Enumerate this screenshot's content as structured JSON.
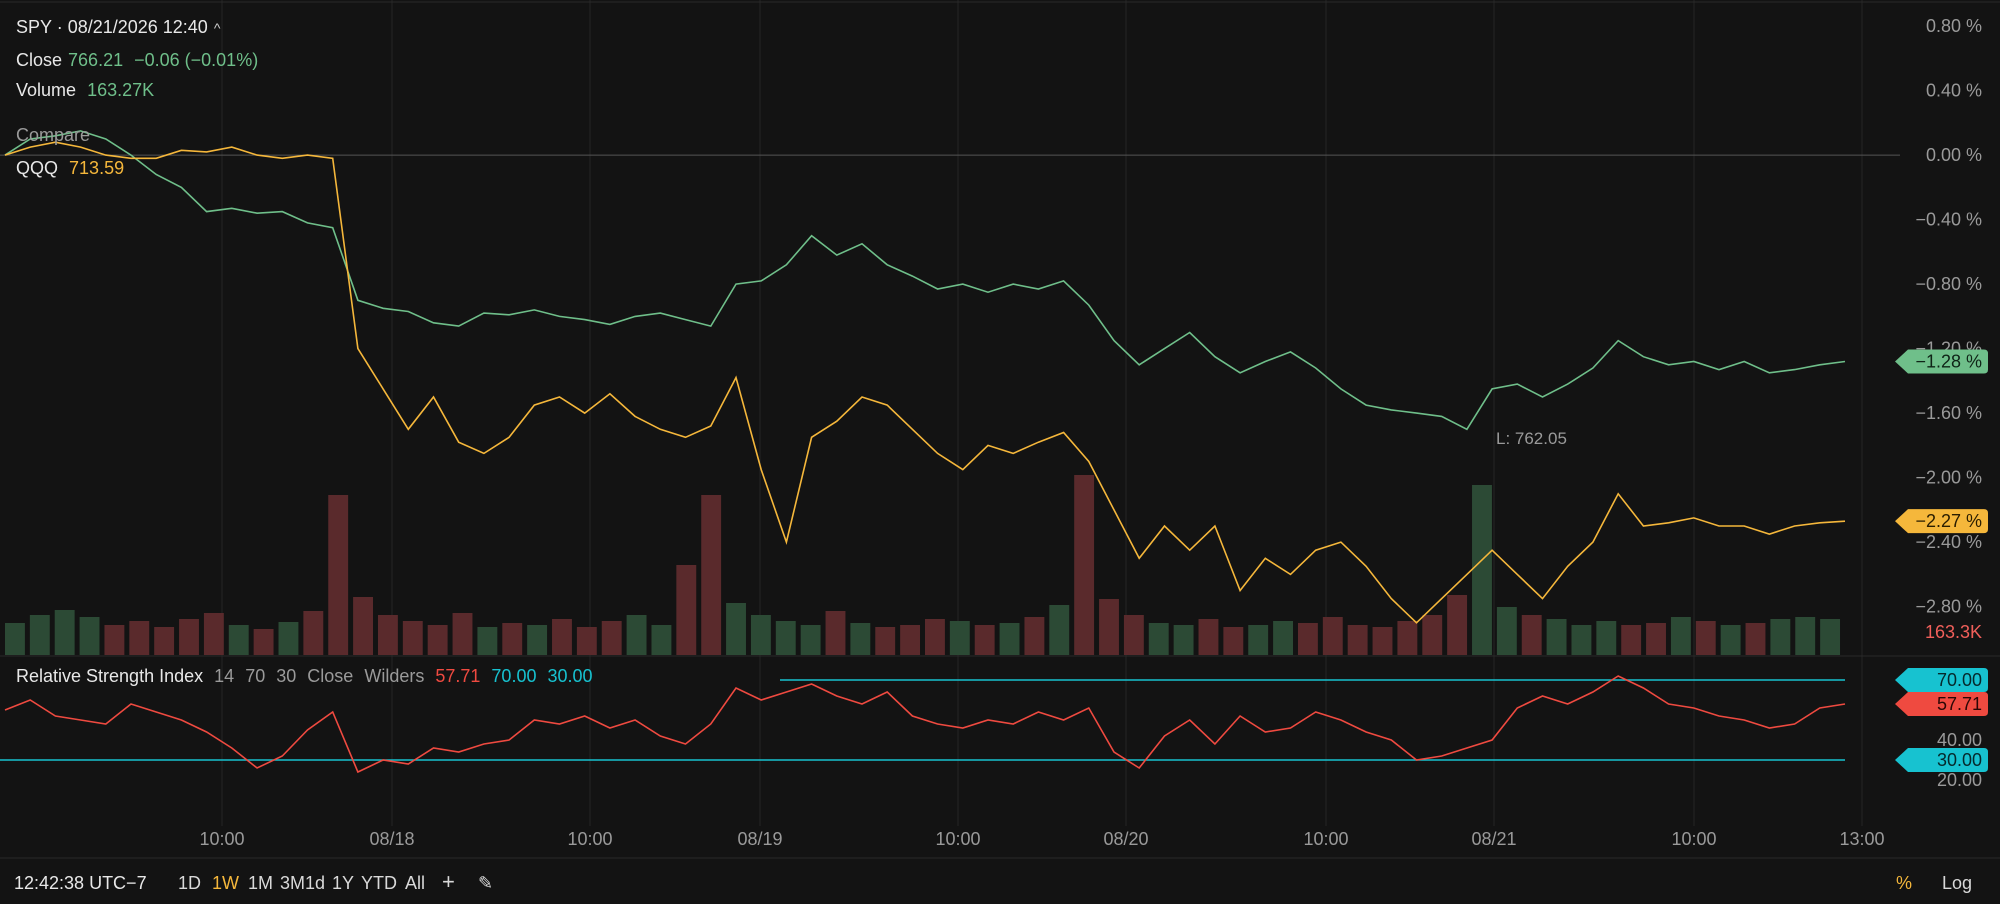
{
  "header": {
    "title": "SPY · 08/21/2026 12:40",
    "close_label": "Close",
    "close_value": "766.21",
    "close_change": "−0.06 (−0.01%)",
    "volume_label": "Volume",
    "volume_value": "163.27K",
    "compare_label": "Compare",
    "compare_symbol": "QQQ",
    "compare_value": "713.59"
  },
  "rsi_legend": {
    "name": "Relative Strength Index",
    "p1": "14",
    "p2": "70",
    "p3": "30",
    "source": "Close",
    "method": "Wilders",
    "value": "57.71",
    "upper": "70.00",
    "lower": "30.00"
  },
  "bottom": {
    "time": "12:42:38 UTC−7",
    "ranges": [
      "1D",
      "1W",
      "1M",
      "3M1d",
      "1Y",
      "YTD",
      "All"
    ],
    "active_range": "1W",
    "percent": "%",
    "log": "Log"
  },
  "colors": {
    "spy": "#6fbf8a",
    "spy_down": "#ef6a62",
    "qqq": "#f5b73b",
    "rsi": "#ef4a40",
    "band": "#17c2d0",
    "vol_up": "#2c4a35",
    "vol_down": "#5a2a2c"
  },
  "chart_data": {
    "type": "line",
    "y_scale": "percent",
    "ylim": [
      -3.1,
      0.9
    ],
    "y_ticks": [
      "0.80 %",
      "0.40 %",
      "0.00 %",
      "−0.40 %",
      "−0.80 %",
      "−1.20 %",
      "−1.60 %",
      "−2.00 %",
      "−2.40 %",
      "−2.80 %"
    ],
    "x_ticks": [
      "10:00",
      "08/18",
      "10:00",
      "08/19",
      "10:00",
      "08/20",
      "10:00",
      "08/21",
      "10:00",
      "13:00"
    ],
    "series": [
      {
        "name": "SPY",
        "last_label": "−1.28 %",
        "values": [
          0.0,
          0.1,
          0.12,
          0.15,
          0.1,
          0.0,
          -0.12,
          -0.2,
          -0.35,
          -0.33,
          -0.36,
          -0.35,
          -0.42,
          -0.45,
          -0.9,
          -0.95,
          -0.97,
          -1.04,
          -1.06,
          -0.98,
          -0.99,
          -0.96,
          -1.0,
          -1.02,
          -1.05,
          -1.0,
          -0.98,
          -1.02,
          -1.06,
          -0.8,
          -0.78,
          -0.68,
          -0.5,
          -0.62,
          -0.55,
          -0.68,
          -0.75,
          -0.83,
          -0.8,
          -0.85,
          -0.8,
          -0.83,
          -0.78,
          -0.93,
          -1.15,
          -1.3,
          -1.2,
          -1.1,
          -1.25,
          -1.35,
          -1.28,
          -1.22,
          -1.32,
          -1.45,
          -1.55,
          -1.58,
          -1.6,
          -1.62,
          -1.7,
          -1.45,
          -1.42,
          -1.5,
          -1.42,
          -1.32,
          -1.15,
          -1.25,
          -1.3,
          -1.28,
          -1.33,
          -1.28,
          -1.35,
          -1.33,
          -1.3,
          -1.28
        ]
      },
      {
        "name": "QQQ",
        "last_label": "−2.27 %",
        "values": [
          0.0,
          0.05,
          0.08,
          0.05,
          0.0,
          -0.02,
          -0.02,
          0.03,
          0.02,
          0.05,
          0.0,
          -0.02,
          0.0,
          -0.02,
          -1.2,
          -1.45,
          -1.7,
          -1.5,
          -1.78,
          -1.85,
          -1.75,
          -1.55,
          -1.5,
          -1.6,
          -1.48,
          -1.62,
          -1.7,
          -1.75,
          -1.68,
          -1.38,
          -1.95,
          -2.4,
          -1.75,
          -1.65,
          -1.5,
          -1.55,
          -1.7,
          -1.85,
          -1.95,
          -1.8,
          -1.85,
          -1.78,
          -1.72,
          -1.9,
          -2.2,
          -2.5,
          -2.3,
          -2.45,
          -2.3,
          -2.7,
          -2.5,
          -2.6,
          -2.45,
          -2.4,
          -2.55,
          -2.75,
          -2.9,
          -2.75,
          -2.6,
          -2.45,
          -2.6,
          -2.75,
          -2.55,
          -2.4,
          -2.1,
          -2.3,
          -2.28,
          -2.25,
          -2.3,
          -2.3,
          -2.35,
          -2.3,
          -2.28,
          -2.27
        ]
      }
    ],
    "annotation": "L:  762.05",
    "volume": {
      "last_label": "163.3K",
      "values": [
        32,
        40,
        45,
        38,
        30,
        34,
        28,
        36,
        42,
        30,
        26,
        33,
        44,
        160,
        58,
        40,
        34,
        30,
        42,
        28,
        32,
        30,
        36,
        28,
        34,
        40,
        30,
        90,
        160,
        52,
        40,
        34,
        30,
        44,
        32,
        28,
        30,
        36,
        34,
        30,
        32,
        38,
        50,
        180,
        56,
        40,
        32,
        30,
        36,
        28,
        30,
        34,
        32,
        38,
        30,
        28,
        34,
        40,
        60,
        170,
        48,
        40,
        36,
        30,
        34,
        30,
        32,
        38,
        34,
        30,
        32,
        36,
        38,
        36
      ]
    }
  },
  "rsi_data": {
    "ylim": [
      10,
      80
    ],
    "y_ticks": [
      "40.00",
      "20.00"
    ],
    "upper": 70,
    "lower": 30,
    "upper_label": "70.00",
    "lower_label": "30.00",
    "last_label": "57.71",
    "values": [
      55,
      60,
      52,
      50,
      48,
      58,
      54,
      50,
      44,
      36,
      26,
      32,
      45,
      54,
      24,
      30,
      28,
      36,
      34,
      38,
      40,
      50,
      48,
      52,
      46,
      50,
      42,
      38,
      48,
      66,
      60,
      64,
      68,
      62,
      58,
      64,
      52,
      48,
      46,
      50,
      48,
      54,
      50,
      56,
      34,
      26,
      42,
      50,
      38,
      52,
      44,
      46,
      54,
      50,
      44,
      40,
      30,
      32,
      36,
      40,
      56,
      62,
      58,
      64,
      72,
      66,
      58,
      56,
      52,
      50,
      46,
      48,
      56,
      58
    ]
  }
}
